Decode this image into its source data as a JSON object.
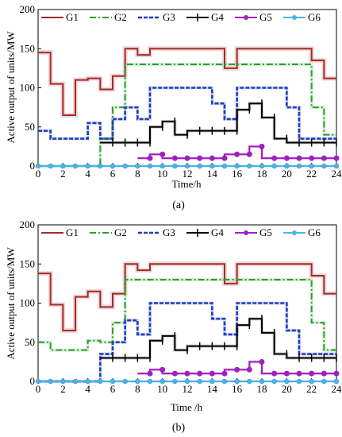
{
  "chart_data": [
    {
      "type": "line",
      "panel_label": "(a)",
      "xlabel": "Time/h",
      "ylabel": "Active output of units/MW",
      "xlim": [
        0,
        24
      ],
      "ylim": [
        0,
        200
      ],
      "xticks": [
        "0",
        "2",
        "4",
        "6",
        "8",
        "10",
        "12",
        "14",
        "16",
        "18",
        "20",
        "22",
        "24"
      ],
      "yticks": [
        "0",
        "50",
        "100",
        "150",
        "200"
      ],
      "legend_position": "top",
      "series": [
        {
          "name": "G1",
          "color": "#a52a2a",
          "style": "solid",
          "x": [
            1,
            2,
            3,
            4,
            5,
            6,
            7,
            8,
            9,
            10,
            11,
            12,
            13,
            14,
            15,
            16,
            17,
            18,
            19,
            20,
            21,
            22,
            23,
            24
          ],
          "y": [
            145,
            105,
            65,
            110,
            112,
            98,
            115,
            150,
            142,
            150,
            150,
            150,
            150,
            150,
            150,
            125,
            150,
            150,
            150,
            150,
            150,
            150,
            135,
            112
          ]
        },
        {
          "name": "G2",
          "color": "#2ca02c",
          "style": "dashdot",
          "x": [
            1,
            2,
            3,
            4,
            5,
            6,
            7,
            8,
            9,
            10,
            11,
            12,
            13,
            14,
            15,
            16,
            17,
            18,
            19,
            20,
            21,
            22,
            23,
            24
          ],
          "y": [
            0,
            0,
            0,
            0,
            0,
            35,
            75,
            130,
            130,
            130,
            130,
            130,
            130,
            130,
            130,
            130,
            130,
            130,
            130,
            130,
            130,
            130,
            75,
            40
          ]
        },
        {
          "name": "G3",
          "color": "#1f3fbf",
          "style": "dotted",
          "x": [
            1,
            2,
            3,
            4,
            5,
            6,
            7,
            8,
            9,
            10,
            11,
            12,
            13,
            14,
            15,
            16,
            17,
            18,
            19,
            20,
            21,
            22,
            23,
            24
          ],
          "y": [
            45,
            35,
            35,
            35,
            55,
            35,
            60,
            75,
            60,
            100,
            100,
            100,
            100,
            100,
            80,
            60,
            100,
            100,
            100,
            100,
            75,
            35,
            35,
            35
          ]
        },
        {
          "name": "G4",
          "color": "#000000",
          "style": "solid",
          "x": [
            6,
            7,
            8,
            9,
            10,
            11,
            12,
            13,
            14,
            15,
            16,
            17,
            18,
            19,
            20,
            21,
            22,
            23,
            24
          ],
          "y": [
            30,
            30,
            30,
            30,
            50,
            57,
            40,
            45,
            45,
            45,
            45,
            72,
            80,
            62,
            35,
            30,
            30,
            30,
            30
          ]
        },
        {
          "name": "G5",
          "color": "#a020c0",
          "style": "solid",
          "x": [
            9,
            10,
            11,
            12,
            13,
            14,
            15,
            16,
            17,
            18,
            19,
            20,
            21,
            22,
            23,
            24
          ],
          "y": [
            10,
            15,
            10,
            10,
            10,
            10,
            10,
            15,
            15,
            25,
            10,
            10,
            10,
            10,
            10,
            10
          ]
        },
        {
          "name": "G6",
          "color": "#4fb3e6",
          "style": "solid",
          "x": [
            0,
            1,
            2,
            3,
            4,
            5,
            6,
            7,
            8,
            9,
            10,
            11,
            12,
            13,
            14,
            15,
            16,
            17,
            18,
            19,
            20,
            21,
            22,
            23,
            24
          ],
          "y": [
            0,
            0,
            0,
            0,
            0,
            0,
            0,
            0,
            0,
            0,
            0,
            0,
            0,
            0,
            0,
            0,
            0,
            0,
            0,
            0,
            0,
            0,
            0,
            0,
            0
          ]
        }
      ]
    },
    {
      "type": "line",
      "panel_label": "(b)",
      "xlabel": "Time /h",
      "ylabel": "Active output of units/MW",
      "xlim": [
        0,
        24
      ],
      "ylim": [
        0,
        200
      ],
      "xticks": [
        "0",
        "2",
        "4",
        "6",
        "8",
        "10",
        "12",
        "14",
        "16",
        "18",
        "20",
        "22",
        "24"
      ],
      "yticks": [
        "0",
        "50",
        "100",
        "150",
        "200"
      ],
      "legend_position": "top",
      "series": [
        {
          "name": "G1",
          "color": "#a52a2a",
          "style": "solid",
          "x": [
            1,
            2,
            3,
            4,
            5,
            6,
            7,
            8,
            9,
            10,
            11,
            12,
            13,
            14,
            15,
            16,
            17,
            18,
            19,
            20,
            21,
            22,
            23,
            24
          ],
          "y": [
            138,
            98,
            65,
            108,
            115,
            95,
            112,
            150,
            142,
            150,
            150,
            150,
            150,
            150,
            150,
            125,
            150,
            150,
            150,
            150,
            150,
            150,
            135,
            112
          ]
        },
        {
          "name": "G2",
          "color": "#2ca02c",
          "style": "dashdot",
          "x": [
            1,
            2,
            3,
            4,
            5,
            6,
            7,
            8,
            9,
            10,
            11,
            12,
            13,
            14,
            15,
            16,
            17,
            18,
            19,
            20,
            21,
            22,
            23,
            24
          ],
          "y": [
            50,
            40,
            40,
            40,
            52,
            50,
            75,
            130,
            130,
            130,
            130,
            130,
            130,
            130,
            130,
            130,
            130,
            130,
            130,
            130,
            130,
            130,
            75,
            40
          ]
        },
        {
          "name": "G3",
          "color": "#1f3fbf",
          "style": "dotted",
          "x": [
            1,
            2,
            3,
            4,
            5,
            6,
            7,
            8,
            9,
            10,
            11,
            12,
            13,
            14,
            15,
            16,
            17,
            18,
            19,
            20,
            21,
            22,
            23,
            24
          ],
          "y": [
            0,
            0,
            0,
            0,
            0,
            35,
            50,
            78,
            60,
            100,
            100,
            100,
            100,
            100,
            80,
            60,
            100,
            100,
            100,
            100,
            65,
            35,
            35,
            35
          ]
        },
        {
          "name": "G4",
          "color": "#000000",
          "style": "solid",
          "x": [
            6,
            7,
            8,
            9,
            10,
            11,
            12,
            13,
            14,
            15,
            16,
            17,
            18,
            19,
            20,
            21,
            22,
            23,
            24
          ],
          "y": [
            30,
            30,
            30,
            30,
            52,
            58,
            40,
            45,
            45,
            45,
            45,
            72,
            80,
            62,
            35,
            30,
            30,
            30,
            30
          ]
        },
        {
          "name": "G5",
          "color": "#a020c0",
          "style": "solid",
          "x": [
            9,
            10,
            11,
            12,
            13,
            14,
            15,
            16,
            17,
            18,
            19,
            20,
            21,
            22,
            23,
            24
          ],
          "y": [
            10,
            15,
            10,
            10,
            10,
            10,
            10,
            15,
            15,
            25,
            10,
            10,
            10,
            10,
            10,
            10
          ]
        },
        {
          "name": "G6",
          "color": "#4fb3e6",
          "style": "solid",
          "x": [
            0,
            1,
            2,
            3,
            4,
            5,
            6,
            7,
            8,
            9,
            10,
            11,
            12,
            13,
            14,
            15,
            16,
            17,
            18,
            19,
            20,
            21,
            22,
            23,
            24
          ],
          "y": [
            0,
            0,
            0,
            0,
            0,
            0,
            0,
            0,
            0,
            0,
            0,
            0,
            0,
            0,
            0,
            0,
            0,
            0,
            0,
            0,
            0,
            0,
            0,
            0,
            0
          ]
        }
      ]
    }
  ]
}
